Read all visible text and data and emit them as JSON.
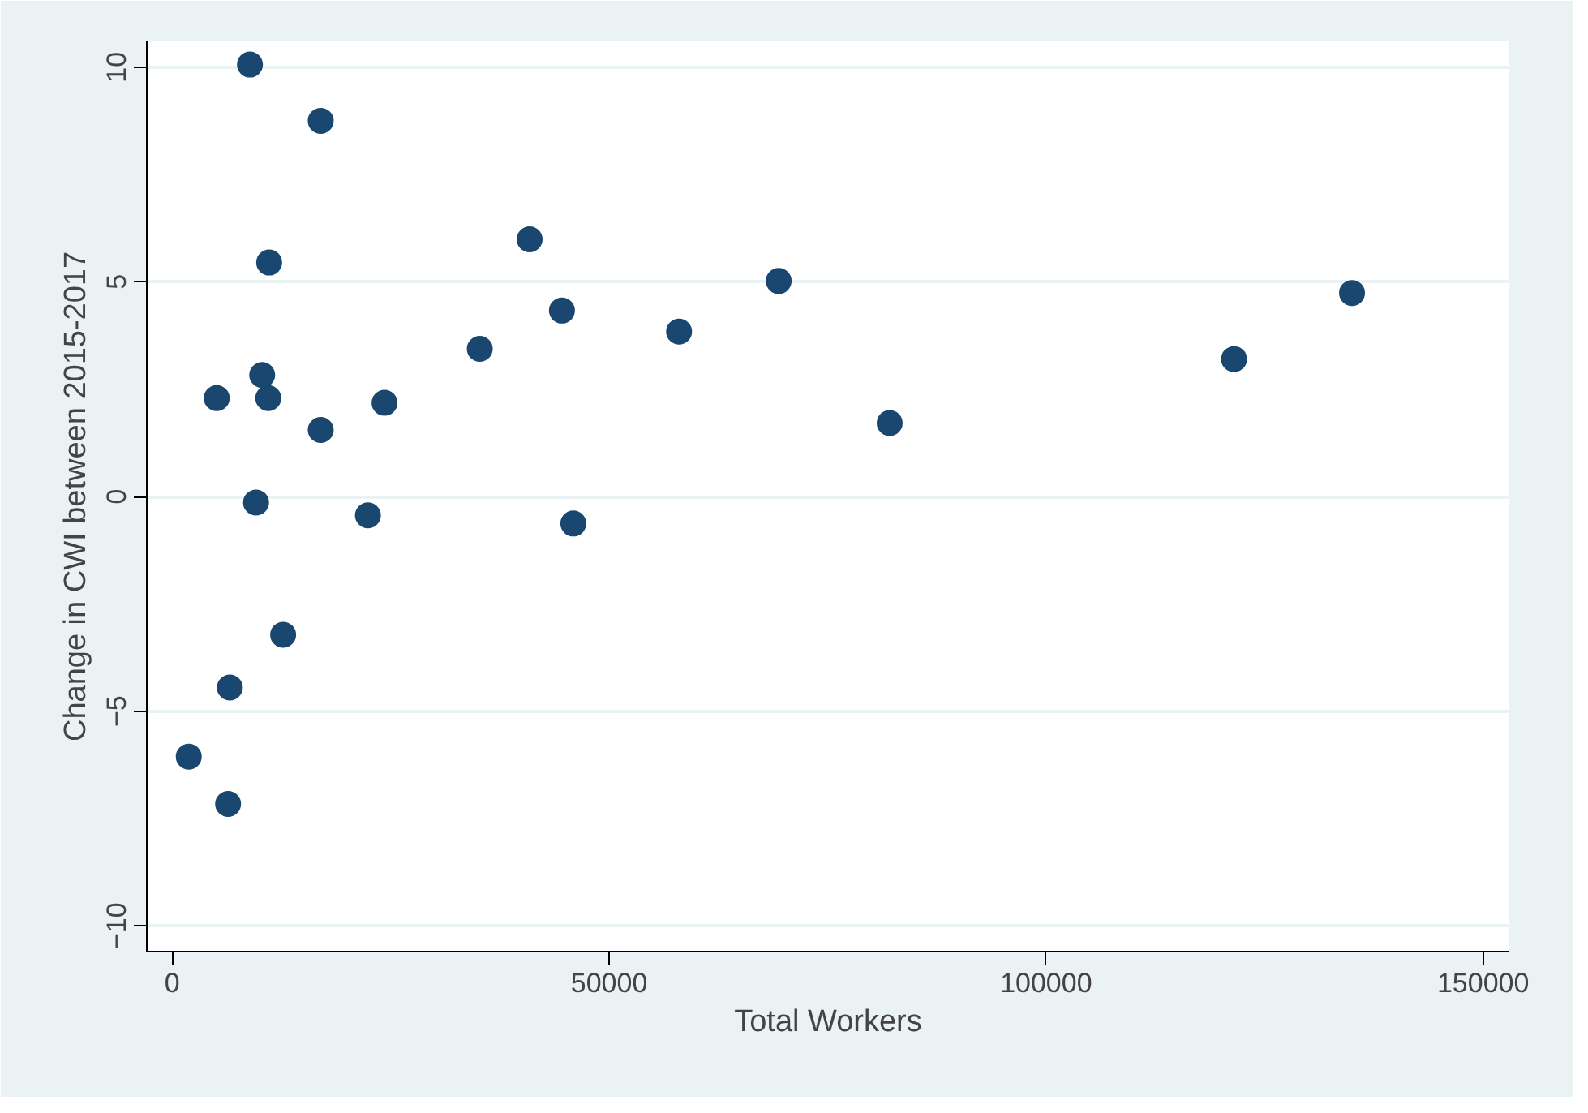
{
  "chart_data": {
    "type": "scatter",
    "xlabel": "Total Workers",
    "ylabel": "Change in CWI between 2015-2017",
    "x": [
      8900,
      17000,
      11100,
      40900,
      69400,
      44600,
      58000,
      35200,
      10300,
      5100,
      11000,
      24300,
      17000,
      9600,
      22400,
      45900,
      12700,
      6600,
      1900,
      6400,
      82100,
      121500,
      135000
    ],
    "series": [
      {
        "color": "#1a476f",
        "values": [
          10.06,
          8.75,
          5.45,
          5.99,
          5.02,
          4.33,
          3.84,
          3.44,
          2.83,
          2.29,
          2.29,
          2.18,
          1.55,
          -0.14,
          -0.44,
          -0.63,
          -3.22,
          -4.45,
          -6.06,
          -7.16,
          1.71,
          3.2,
          4.74
        ]
      }
    ],
    "xlim": [
      -2900,
      153000
    ],
    "ylim": [
      -10.6,
      10.6
    ],
    "xticks": [
      0,
      50000,
      100000,
      150000
    ],
    "yticks": [
      -10,
      -5,
      0,
      5,
      10
    ],
    "grid": "y",
    "marker": "circle"
  }
}
